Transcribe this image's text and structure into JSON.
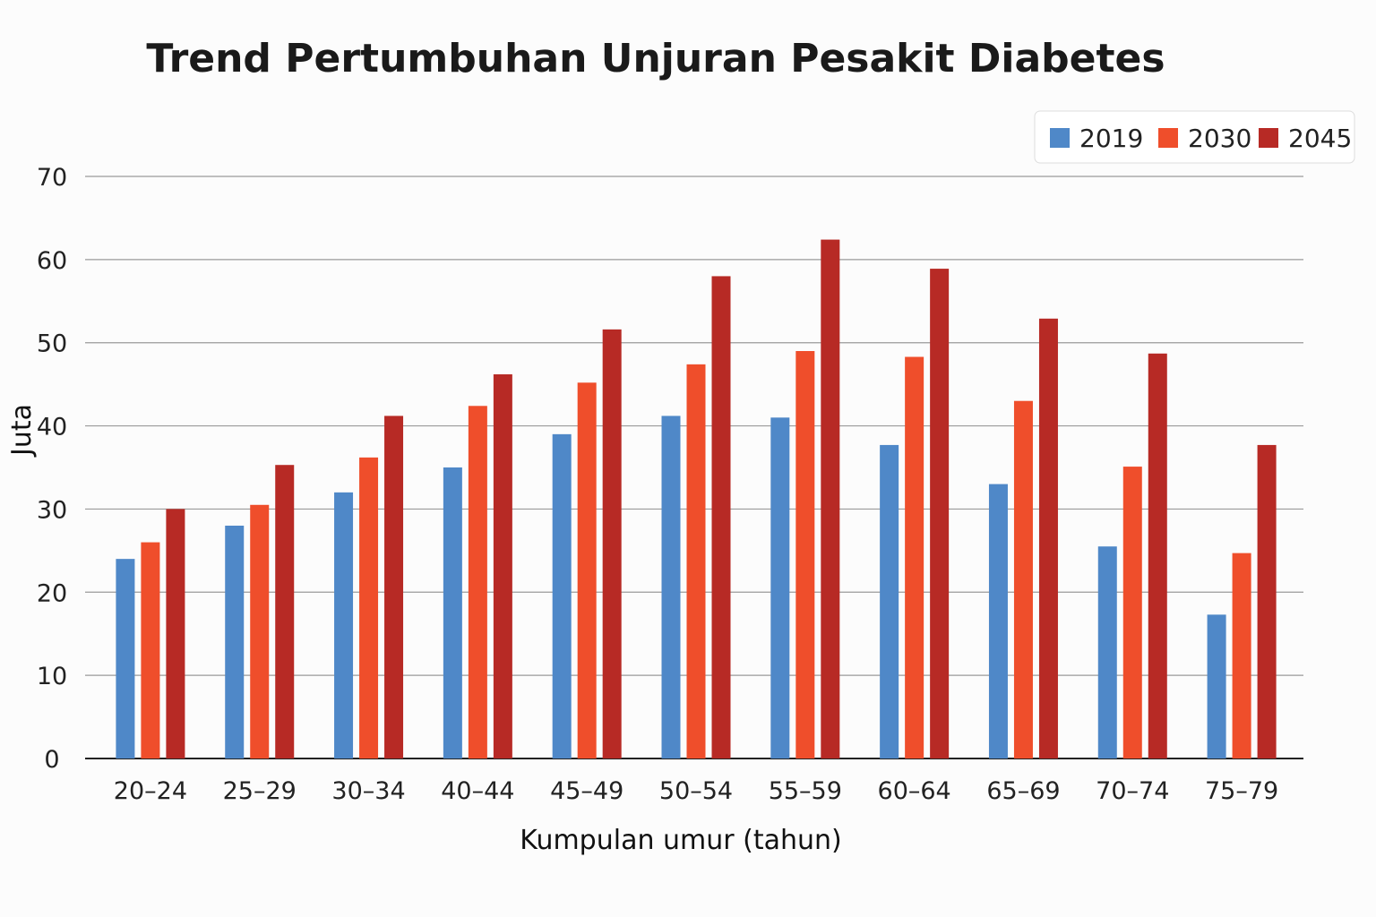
{
  "chart_data": {
    "type": "bar",
    "title": "Trend Pertumbuhan Unjuran Pesakit Diabetes",
    "xlabel": "Kumpulan umur (tahun)",
    "ylabel": "Juta",
    "ylim": [
      0,
      70
    ],
    "yticks": [
      0,
      10,
      20,
      30,
      40,
      50,
      60,
      70
    ],
    "grid": true,
    "legend_position": "top-right",
    "categories": [
      "20–24",
      "25–29",
      "30–34",
      "40–44",
      "45–49",
      "50–54",
      "55–59",
      "60–64",
      "65–69",
      "70–74",
      "75–79"
    ],
    "series": [
      {
        "name": "2019",
        "color": "#4f88c8",
        "values": [
          24,
          28,
          32,
          35,
          39,
          41.2,
          41,
          37.7,
          33,
          25.5,
          17.3
        ]
      },
      {
        "name": "2030",
        "color": "#ef4e2b",
        "values": [
          26,
          30.5,
          36.2,
          42.4,
          45.2,
          47.4,
          49,
          48.3,
          43,
          35.1,
          24.7
        ]
      },
      {
        "name": "2045",
        "color": "#b72a25",
        "values": [
          30,
          35.3,
          41.2,
          46.2,
          51.6,
          58,
          62.4,
          58.9,
          52.9,
          48.7,
          37.7
        ]
      }
    ]
  }
}
